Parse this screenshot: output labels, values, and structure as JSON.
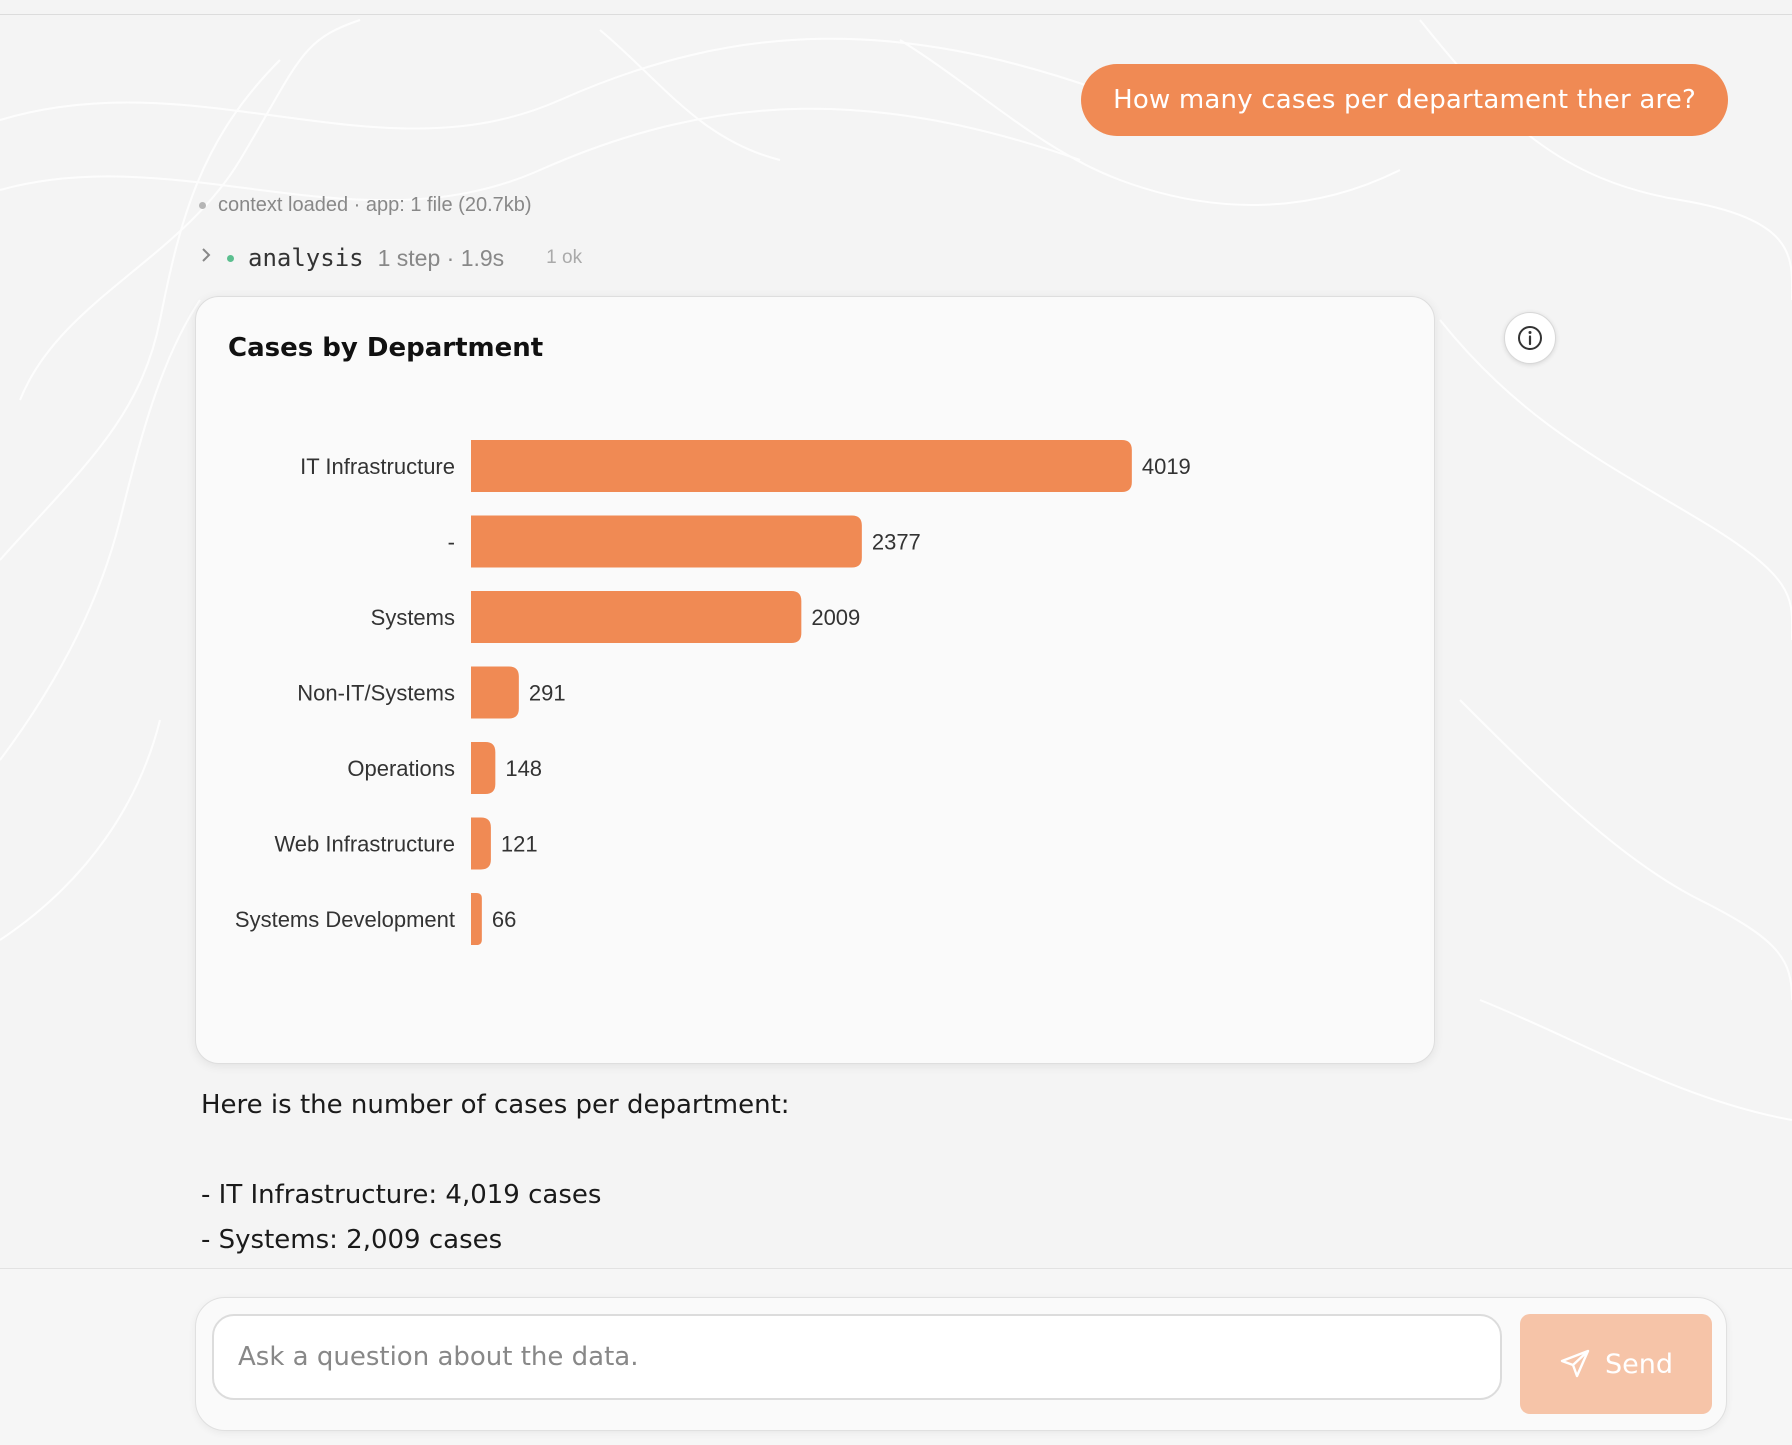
{
  "conversation": {
    "user_message": "How many cases per departament ther are?",
    "context_status": "context loaded · app: 1 file (20.7kb)",
    "analysis": {
      "name": "analysis",
      "meta": "1 step · 1.9s",
      "status": "1 ok"
    },
    "answer": {
      "intro": "Here is the number of cases per department:",
      "items": [
        "- IT Infrastructure: 4,019 cases",
        "- Systems: 2,009 cases"
      ]
    }
  },
  "chart_data": {
    "type": "bar",
    "orientation": "horizontal",
    "title": "Cases by Department",
    "categories": [
      "IT Infrastructure",
      "-",
      "Systems",
      "Non-IT/Systems",
      "Operations",
      "Web Infrastructure",
      "Systems Development"
    ],
    "values": [
      4019,
      2377,
      2009,
      291,
      148,
      121,
      66
    ],
    "xlabel": "",
    "ylabel": "",
    "grid": false,
    "legend": "none",
    "bar_color": "#f08a54"
  },
  "composer": {
    "placeholder": "Ask a question about the data.",
    "send_label": "Send",
    "send_icon": "paper-plane-icon"
  },
  "icons": {
    "info": "info-icon",
    "expand": "chevron-right-icon"
  }
}
